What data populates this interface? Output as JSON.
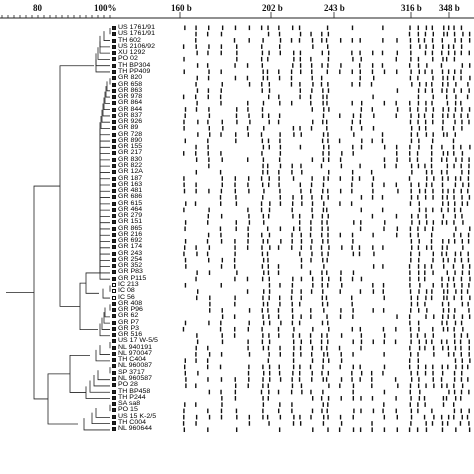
{
  "scale": {
    "similarity_ticks": [
      {
        "label": "80",
        "value": 80
      },
      {
        "label": "100%",
        "value": 100
      }
    ],
    "size_markers": [
      {
        "label": "160 b",
        "value": 160
      },
      {
        "label": "202 b",
        "value": 202
      },
      {
        "label": "243 b",
        "value": 243
      },
      {
        "label": "316 b",
        "value": 316
      },
      {
        "label": "348 b",
        "value": 348
      }
    ]
  },
  "strains": [
    {
      "label": "US 1761/91",
      "marker": "filled"
    },
    {
      "label": "US 1761/91",
      "marker": "filled"
    },
    {
      "label": "TH 602",
      "marker": "filled"
    },
    {
      "label": "US 2106/92",
      "marker": "filled"
    },
    {
      "label": "XU 1292",
      "marker": "filled"
    },
    {
      "label": "PO 02",
      "marker": "filled"
    },
    {
      "label": "TH BP304",
      "marker": "filled"
    },
    {
      "label": "TH PP409",
      "marker": "filled"
    },
    {
      "label": "GR 820",
      "marker": "filled"
    },
    {
      "label": "GR 658",
      "marker": "filled"
    },
    {
      "label": "GR 863",
      "marker": "filled"
    },
    {
      "label": "GR 978",
      "marker": "filled"
    },
    {
      "label": "GR 864",
      "marker": "filled"
    },
    {
      "label": "GR 844",
      "marker": "filled"
    },
    {
      "label": "GR 837",
      "marker": "filled"
    },
    {
      "label": "GR 926",
      "marker": "filled"
    },
    {
      "label": "GR 89",
      "marker": "filled"
    },
    {
      "label": "GR 728",
      "marker": "filled"
    },
    {
      "label": "GR 890",
      "marker": "filled"
    },
    {
      "label": "GR 155",
      "marker": "filled"
    },
    {
      "label": "GR 217",
      "marker": "filled"
    },
    {
      "label": "GR 830",
      "marker": "filled"
    },
    {
      "label": "GR 822",
      "marker": "filled"
    },
    {
      "label": "GR 12A",
      "marker": "filled"
    },
    {
      "label": "GR 187",
      "marker": "filled"
    },
    {
      "label": "GR 163",
      "marker": "filled"
    },
    {
      "label": "GR 481",
      "marker": "filled"
    },
    {
      "label": "GR 686",
      "marker": "filled"
    },
    {
      "label": "GR 615",
      "marker": "filled"
    },
    {
      "label": "GR 464",
      "marker": "filled"
    },
    {
      "label": "GR 279",
      "marker": "filled"
    },
    {
      "label": "GR 151",
      "marker": "filled"
    },
    {
      "label": "GR 865",
      "marker": "filled"
    },
    {
      "label": "GR 216",
      "marker": "filled"
    },
    {
      "label": "GR 692",
      "marker": "filled"
    },
    {
      "label": "GR 174",
      "marker": "filled"
    },
    {
      "label": "GR 243",
      "marker": "filled"
    },
    {
      "label": "GR 254",
      "marker": "filled"
    },
    {
      "label": "GR 352",
      "marker": "filled"
    },
    {
      "label": "GR P83",
      "marker": "filled"
    },
    {
      "label": "GR P115",
      "marker": "filled"
    },
    {
      "label": "IC 213",
      "marker": "open"
    },
    {
      "label": "IC 08",
      "marker": "open"
    },
    {
      "label": "IC 56",
      "marker": "open"
    },
    {
      "label": "GR 408",
      "marker": "filled"
    },
    {
      "label": "GR P96",
      "marker": "filled"
    },
    {
      "label": "GR 62",
      "marker": "filled"
    },
    {
      "label": "GR P7",
      "marker": "filled"
    },
    {
      "label": "GR P3",
      "marker": "filled"
    },
    {
      "label": "GR 516",
      "marker": "filled"
    },
    {
      "label": "US 17 W-5/5",
      "marker": "filled"
    },
    {
      "label": "NL 940191",
      "marker": "filled"
    },
    {
      "label": "NL 970047",
      "marker": "filled"
    },
    {
      "label": "TH C404",
      "marker": "filled"
    },
    {
      "label": "NL 960087",
      "marker": "filled"
    },
    {
      "label": "SP 3717",
      "marker": "filled"
    },
    {
      "label": "NL 960587",
      "marker": "filled"
    },
    {
      "label": "PO 28",
      "marker": "filled"
    },
    {
      "label": "TH BP458",
      "marker": "filled"
    },
    {
      "label": "TH P244",
      "marker": "filled"
    },
    {
      "label": "SA sa8",
      "marker": "filled"
    },
    {
      "label": "PO 15",
      "marker": "filled"
    },
    {
      "label": "US 15 K-2/5",
      "marker": "filled"
    },
    {
      "label": "TH C004",
      "marker": "filled"
    },
    {
      "label": "NL 960644",
      "marker": "filled"
    }
  ]
}
